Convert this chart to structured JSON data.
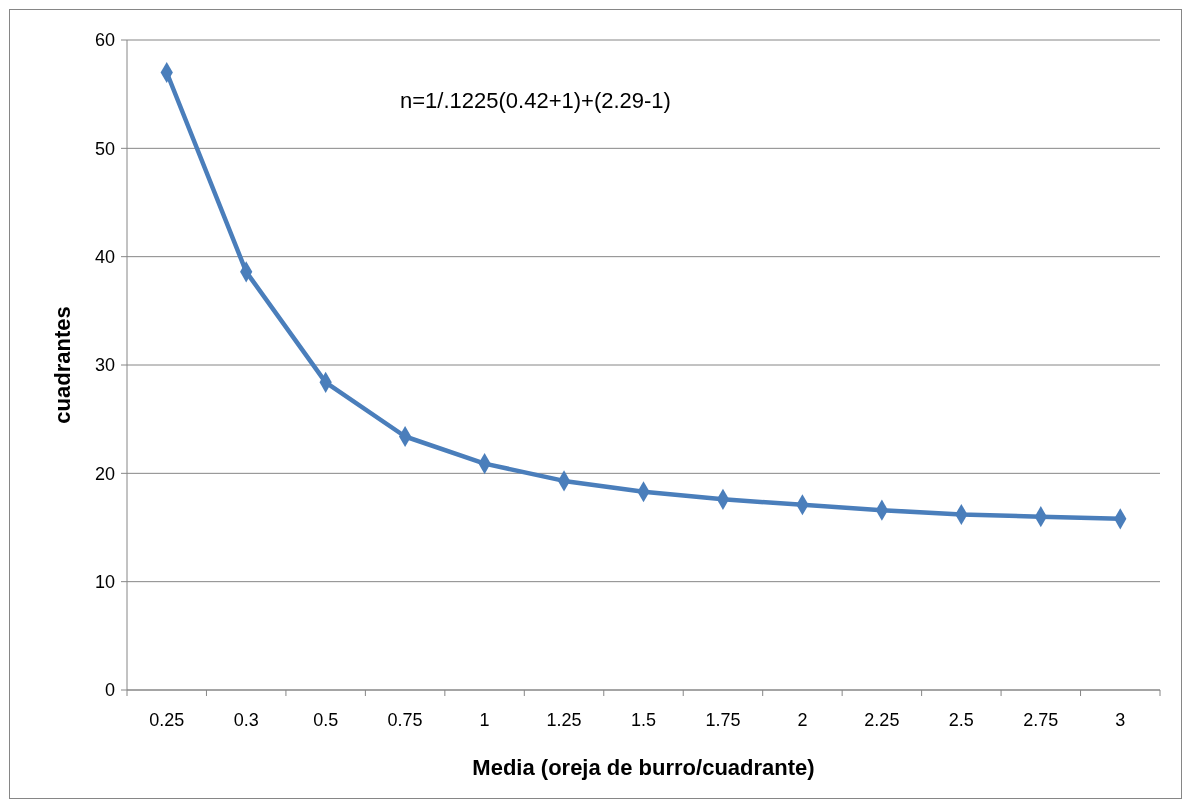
{
  "chart_data": {
    "type": "line",
    "xlabel": "Media (oreja de burro/cuadrante)",
    "ylabel": "cuadrantes",
    "annotations": [
      "n=1/.1225(0.42+1)+(2.29-1)"
    ],
    "categories": [
      "0.25",
      "0.3",
      "0.5",
      "0.75",
      "1",
      "1.25",
      "1.5",
      "1.75",
      "2",
      "2.25",
      "2.5",
      "2.75",
      "3"
    ],
    "series": [
      {
        "color": "#4a7ebb",
        "values": [
          57,
          38.6,
          28.4,
          23.4,
          20.9,
          19.3,
          18.3,
          17.6,
          17.1,
          16.6,
          16.2,
          16.0,
          15.8
        ]
      }
    ],
    "ylim": [
      0,
      60
    ],
    "yticks": [
      0,
      10,
      20,
      30,
      40,
      50,
      60
    ],
    "grid": "y",
    "marker": "diamond",
    "line_style": "solid"
  }
}
